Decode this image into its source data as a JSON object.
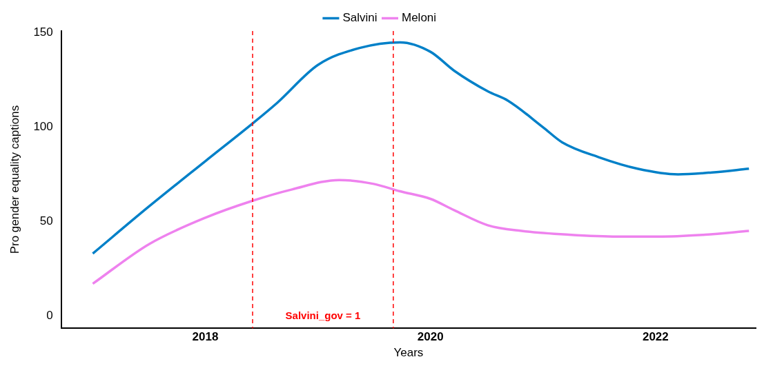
{
  "chart_data": {
    "type": "line",
    "xlabel": "Years",
    "ylabel": "Pro gender equality captions",
    "xlim": [
      2016.72,
      2022.89
    ],
    "xticks": [
      2018,
      2020,
      2022
    ],
    "ylim": [
      -6.6,
      151
    ],
    "yticks": [
      0,
      50,
      100,
      150
    ],
    "grid": false,
    "legend": "top",
    "marker": "none",
    "line_style": "solid",
    "series": [
      {
        "name": "Salvini",
        "color": "#0080c8",
        "x": [
          2017.0,
          2017.5,
          2018.0,
          2018.42,
          2018.64,
          2019.0,
          2019.37,
          2019.73,
          2020.0,
          2020.21,
          2020.51,
          2020.69,
          2021.0,
          2021.17,
          2021.5,
          2021.84,
          2022.2,
          2022.5,
          2022.83
        ],
        "values": [
          33,
          58,
          82,
          102,
          113,
          133,
          142,
          145,
          140,
          130,
          119,
          114,
          100,
          92,
          84,
          78,
          75,
          76,
          78
        ]
      },
      {
        "name": "Meloni",
        "color": "#ee82ee",
        "x": [
          2017.0,
          2017.5,
          2018.0,
          2018.42,
          2018.77,
          2019.19,
          2019.49,
          2019.73,
          2020.0,
          2020.21,
          2020.51,
          2020.81,
          2021.23,
          2021.66,
          2022.02,
          2022.44,
          2022.83
        ],
        "values": [
          17,
          38,
          52,
          61,
          67,
          72,
          70,
          66,
          62,
          56,
          48,
          45,
          43,
          42,
          42,
          43,
          45
        ]
      }
    ],
    "ref_lines": [
      {
        "axis": "x",
        "value": 2018.42,
        "color": "#ff0000",
        "line_style": "dashed"
      },
      {
        "axis": "x",
        "value": 2019.67,
        "color": "#ff0000",
        "line_style": "dashed"
      }
    ],
    "annotations": [
      "Salvini_gov = 1"
    ]
  }
}
